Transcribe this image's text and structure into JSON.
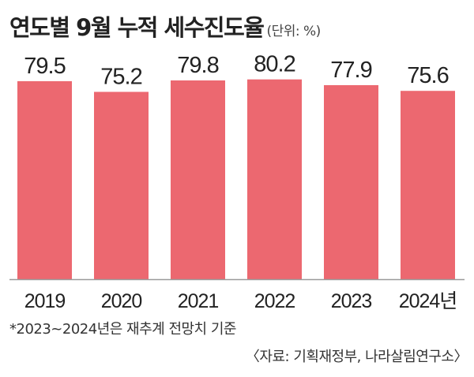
{
  "title": "연도별 9월 누적 세수진도율",
  "unit": "(단위: %)",
  "note": "*2023~2024년은 재추계 전망치 기준",
  "source": "〈자료: 기획재정부, 나라살림연구소〉",
  "colors": {
    "bar": "#ec6870",
    "axis": "#9a9a9a"
  },
  "chart_data": {
    "type": "bar",
    "categories": [
      "2019",
      "2020",
      "2021",
      "2022",
      "2023",
      "2024년"
    ],
    "values": [
      79.5,
      75.2,
      79.8,
      80.2,
      77.9,
      75.6
    ],
    "data_labels": [
      "79.5",
      "75.2",
      "79.8",
      "80.2",
      "77.9",
      "75.6"
    ],
    "title": "연도별 9월 누적 세수진도율",
    "xlabel": "",
    "ylabel": "",
    "ylim": [
      0,
      82
    ],
    "grid": false,
    "legend": "none"
  }
}
